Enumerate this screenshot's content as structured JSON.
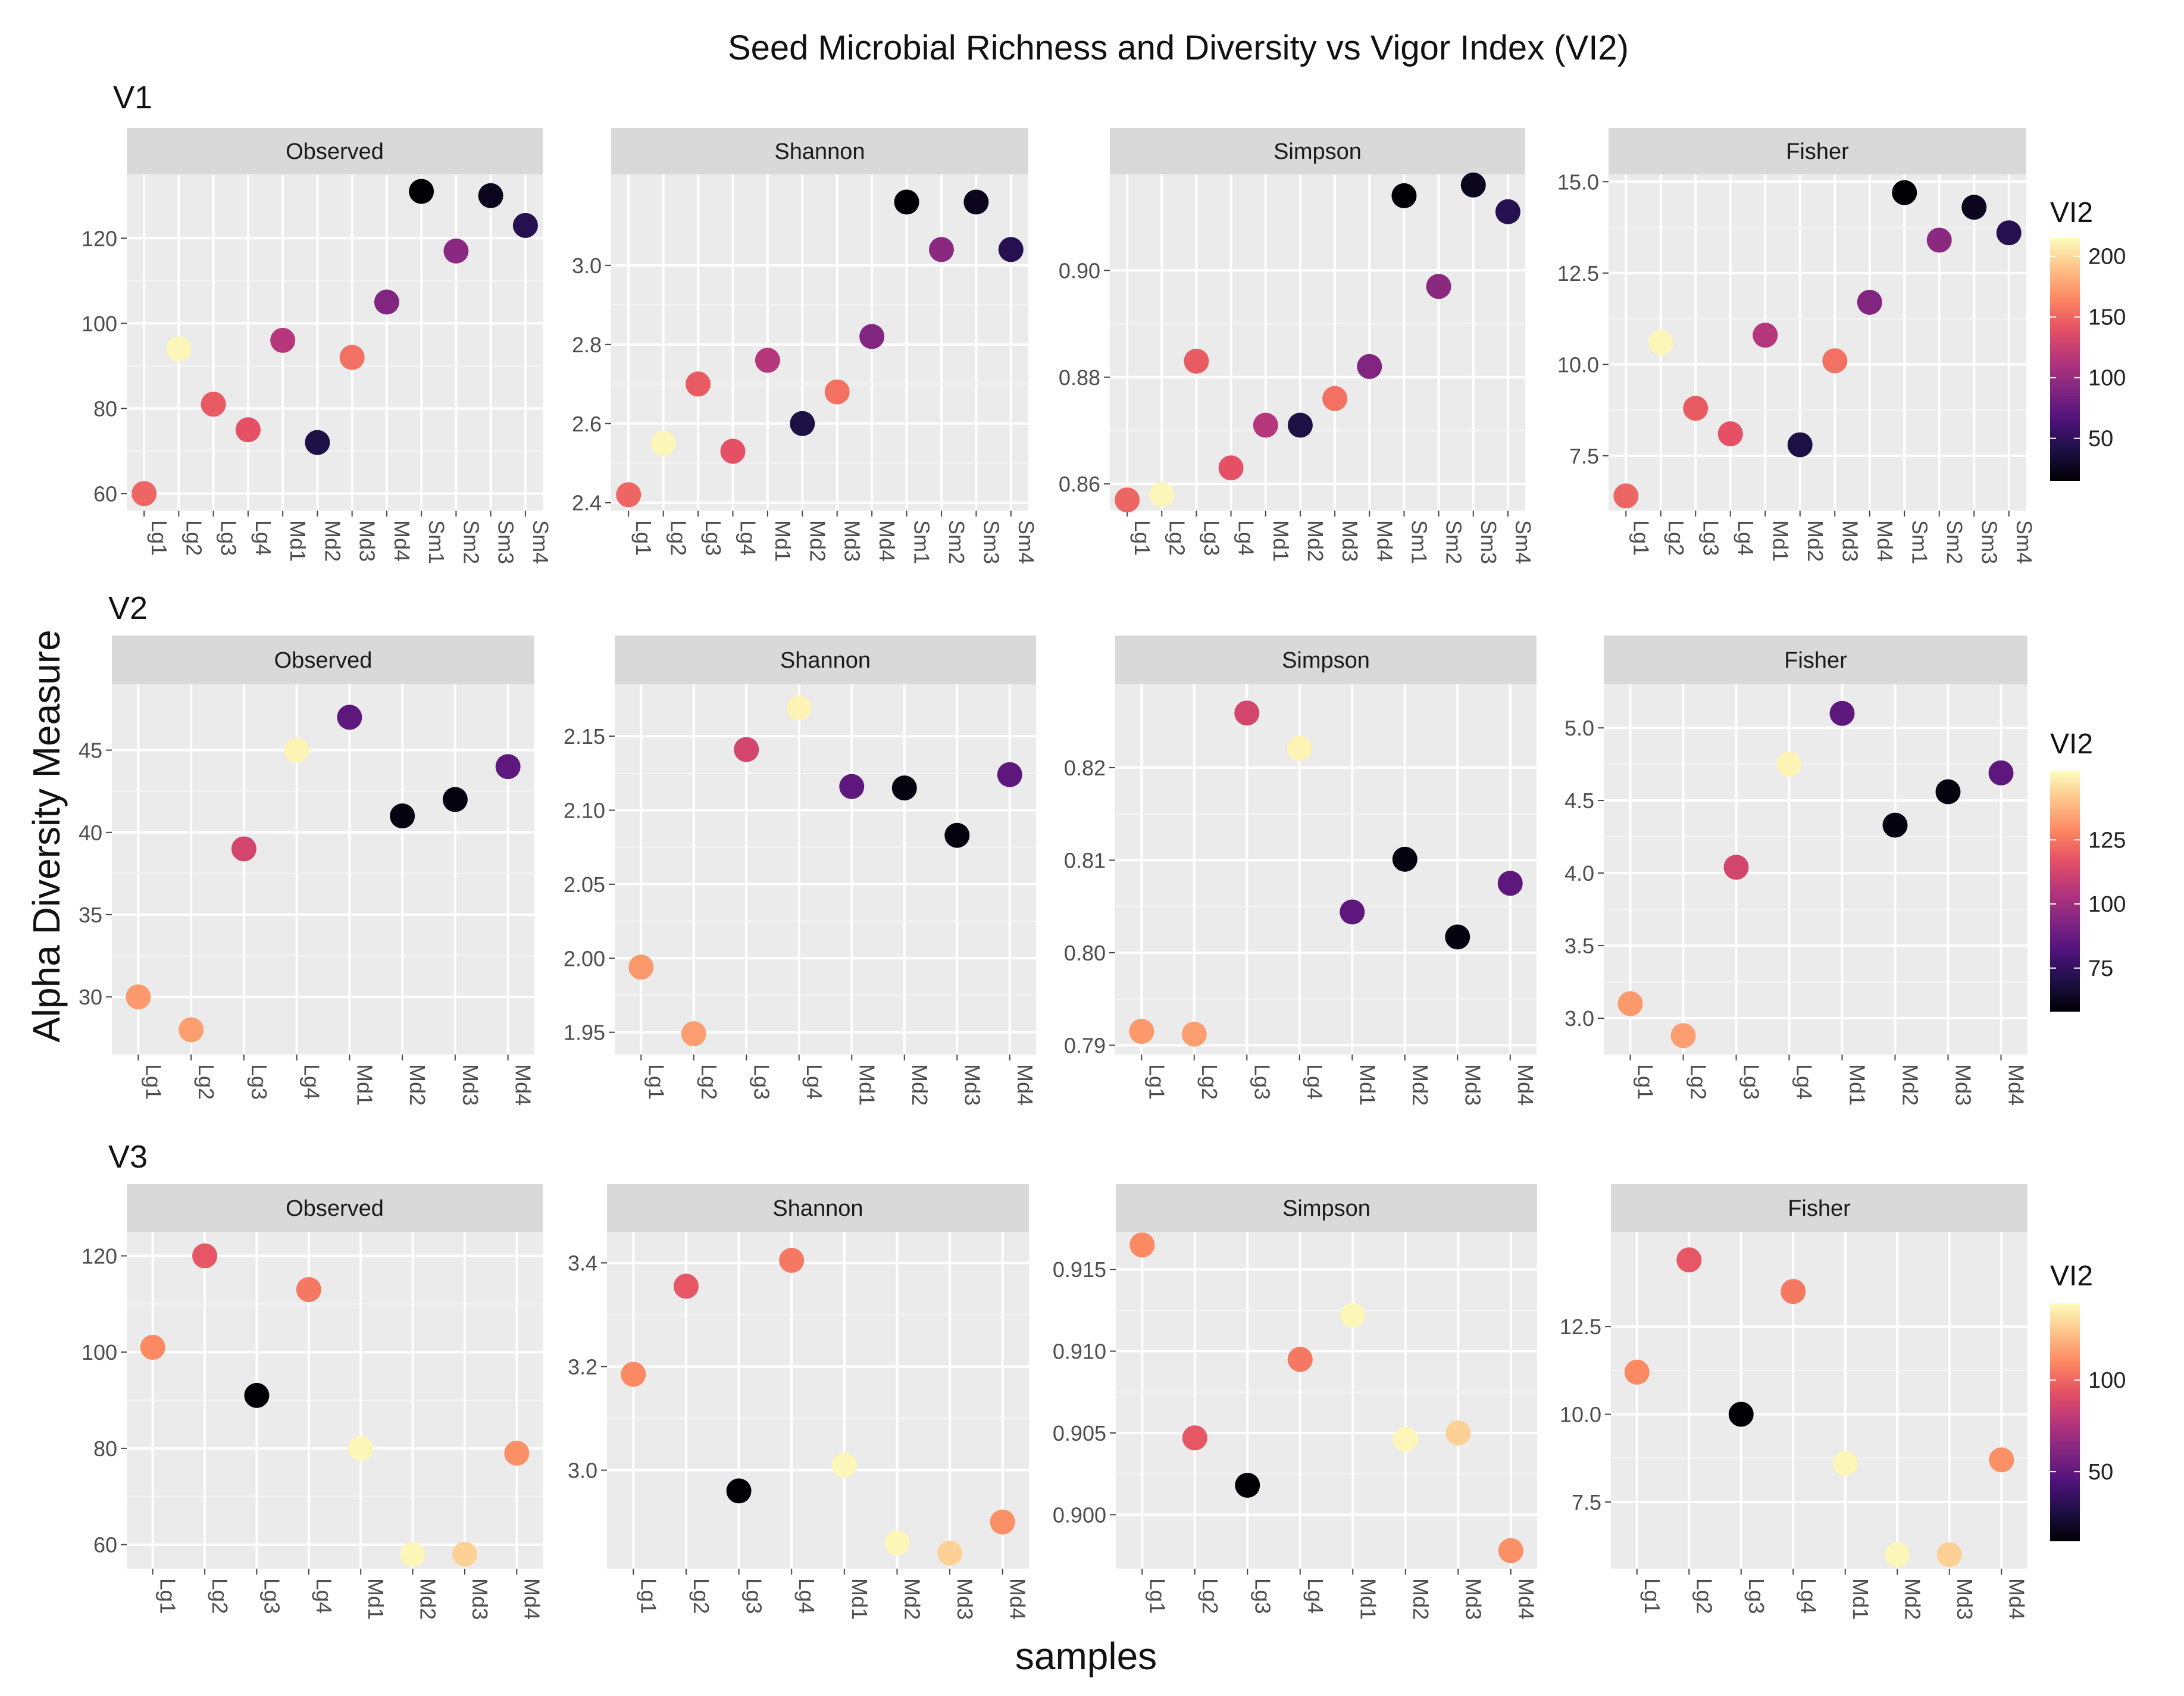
{
  "chart_data": {
    "type": "scatter",
    "title": "Seed Microbial Richness and Diversity vs Vigor Index (VI2)",
    "xlabel": "samples",
    "ylabel": "Alpha Diversity Measure",
    "colormap": {
      "name": "magma",
      "stops": [
        "#000004",
        "#1c1044",
        "#4f127b",
        "#812581",
        "#b5367a",
        "#e55064",
        "#fb8761",
        "#fec287",
        "#fcfdbf"
      ]
    },
    "rows": [
      {
        "label": "V1",
        "samples": [
          "Lg1",
          "Lg2",
          "Lg3",
          "Lg4",
          "Md1",
          "Md2",
          "Md3",
          "Md4",
          "Sm1",
          "Sm2",
          "Sm3",
          "Sm4"
        ],
        "vi2": [
          150,
          212,
          145,
          140,
          115,
          40,
          155,
          90,
          15,
          95,
          25,
          45
        ],
        "legend": {
          "title": "VI2",
          "min": 15,
          "max": 215,
          "ticks": [
            50,
            100,
            150,
            200
          ],
          "tick_labels": [
            "50",
            "100",
            "150",
            "200"
          ]
        },
        "panels": [
          {
            "metric": "Observed",
            "ylim": [
              56,
              135
            ],
            "ticks": [
              60,
              80,
              100,
              120
            ],
            "tick_labels": [
              "60",
              "80",
              "100",
              "120"
            ],
            "values": [
              60,
              94,
              81,
              75,
              96,
              72,
              92,
              105,
              131,
              117,
              130,
              123
            ]
          },
          {
            "metric": "Shannon",
            "ylim": [
              2.38,
              3.23
            ],
            "ticks": [
              2.4,
              2.6,
              2.8,
              3.0
            ],
            "tick_labels": [
              "2.4",
              "2.6",
              "2.8",
              "3.0"
            ],
            "values": [
              2.42,
              2.55,
              2.7,
              2.53,
              2.76,
              2.6,
              2.68,
              2.82,
              3.16,
              3.04,
              3.16,
              3.04
            ]
          },
          {
            "metric": "Simpson",
            "ylim": [
              0.855,
              0.918
            ],
            "ticks": [
              0.86,
              0.88,
              0.9
            ],
            "tick_labels": [
              "0.86",
              "0.88",
              "0.90"
            ],
            "values": [
              0.857,
              0.858,
              0.883,
              0.863,
              0.871,
              0.871,
              0.876,
              0.882,
              0.914,
              0.897,
              0.916,
              0.911
            ]
          },
          {
            "metric": "Fisher",
            "ylim": [
              6.0,
              15.2
            ],
            "ticks": [
              7.5,
              10.0,
              12.5,
              15.0
            ],
            "tick_labels": [
              "7.5",
              "10.0",
              "12.5",
              "15.0"
            ],
            "values": [
              6.4,
              10.6,
              8.8,
              8.1,
              10.8,
              7.8,
              10.1,
              11.7,
              14.7,
              13.4,
              14.3,
              13.6
            ]
          }
        ]
      },
      {
        "label": "V2",
        "samples": [
          "Lg1",
          "Lg2",
          "Lg3",
          "Lg4",
          "Md1",
          "Md2",
          "Md3",
          "Md4"
        ],
        "vi2": [
          132,
          133,
          112,
          150,
          85,
          60,
          60,
          85
        ],
        "legend": {
          "title": "VI2",
          "min": 58,
          "max": 152,
          "ticks": [
            75,
            100,
            125
          ],
          "tick_labels": [
            "75",
            "100",
            "125"
          ]
        },
        "panels": [
          {
            "metric": "Observed",
            "ylim": [
              26.5,
              49
            ],
            "ticks": [
              30,
              35,
              40,
              45
            ],
            "tick_labels": [
              "30",
              "35",
              "40",
              "45"
            ],
            "values": [
              30,
              28,
              39,
              45,
              47,
              41,
              42,
              44
            ]
          },
          {
            "metric": "Shannon",
            "ylim": [
              1.935,
              2.185
            ],
            "ticks": [
              1.95,
              2.0,
              2.05,
              2.1,
              2.15
            ],
            "tick_labels": [
              "1.95",
              "2.00",
              "2.05",
              "2.10",
              "2.15"
            ],
            "values": [
              1.994,
              1.949,
              2.141,
              2.169,
              2.116,
              2.115,
              2.083,
              2.124
            ]
          },
          {
            "metric": "Simpson",
            "ylim": [
              0.789,
              0.829
            ],
            "ticks": [
              0.79,
              0.8,
              0.81,
              0.82
            ],
            "tick_labels": [
              "0.79",
              "0.80",
              "0.81",
              "0.82"
            ],
            "values": [
              0.7915,
              0.7912,
              0.8259,
              0.8221,
              0.8044,
              0.8101,
              0.8017,
              0.8075
            ]
          },
          {
            "metric": "Fisher",
            "ylim": [
              2.75,
              5.3
            ],
            "ticks": [
              3.0,
              3.5,
              4.0,
              4.5,
              5.0
            ],
            "tick_labels": [
              "3.0",
              "3.5",
              "4.0",
              "4.5",
              "5.0"
            ],
            "values": [
              3.1,
              2.88,
              4.04,
              4.75,
              5.1,
              4.33,
              4.56,
              4.69
            ]
          }
        ]
      },
      {
        "label": "V3",
        "samples": [
          "Lg1",
          "Lg2",
          "Lg3",
          "Lg4",
          "Md1",
          "Md2",
          "Md3",
          "Md4"
        ],
        "vi2": [
          110,
          95,
          12,
          105,
          140,
          140,
          130,
          112
        ],
        "legend": {
          "title": "VI2",
          "min": 12,
          "max": 142,
          "ticks": [
            50,
            100
          ],
          "tick_labels": [
            "50",
            "100"
          ]
        },
        "panels": [
          {
            "metric": "Observed",
            "ylim": [
              55,
              125
            ],
            "ticks": [
              60,
              80,
              100,
              120
            ],
            "tick_labels": [
              "60",
              "80",
              "100",
              "120"
            ],
            "values": [
              101,
              120,
              91,
              113,
              80,
              58,
              58,
              79
            ]
          },
          {
            "metric": "Shannon",
            "ylim": [
              2.81,
              3.46
            ],
            "ticks": [
              3.0,
              3.2,
              3.4
            ],
            "tick_labels": [
              "3.0",
              "3.2",
              "3.4"
            ],
            "values": [
              3.185,
              3.355,
              2.96,
              3.405,
              3.01,
              2.86,
              2.84,
              2.9
            ]
          },
          {
            "metric": "Simpson",
            "ylim": [
              0.8967,
              0.9173
            ],
            "ticks": [
              0.9,
              0.905,
              0.91,
              0.915
            ],
            "tick_labels": [
              "0.900",
              "0.905",
              "0.910",
              "0.915"
            ],
            "values": [
              0.9165,
              0.9047,
              0.9018,
              0.9095,
              0.9122,
              0.9046,
              0.905,
              0.8978
            ]
          },
          {
            "metric": "Fisher",
            "ylim": [
              5.6,
              15.2
            ],
            "ticks": [
              7.5,
              10.0,
              12.5
            ],
            "tick_labels": [
              "7.5",
              "10.0",
              "12.5"
            ],
            "values": [
              11.2,
              14.4,
              10.0,
              13.5,
              8.6,
              6.0,
              6.0,
              8.7
            ]
          }
        ]
      }
    ]
  }
}
